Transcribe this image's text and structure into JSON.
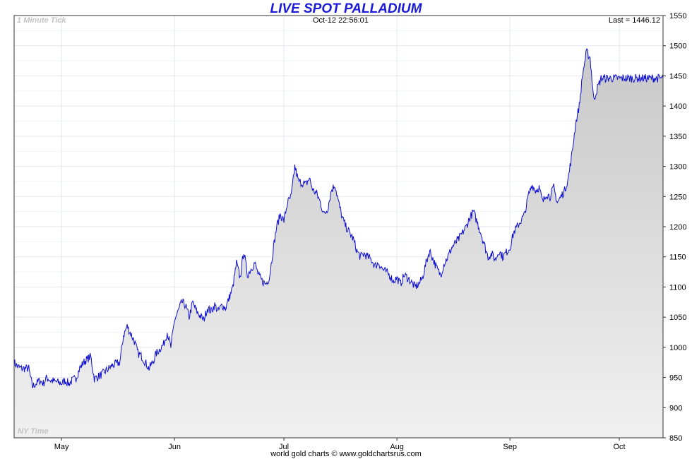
{
  "header": {
    "title": "LIVE SPOT PALLADIUM",
    "resolution_label": "1 Minute Tick",
    "timestamp": "Oct-12  22:56:01",
    "last_label": "Last = 1446.12",
    "timezone_label": "NY Time"
  },
  "footer": {
    "credit": "world gold charts © www.goldchartsrus.com"
  },
  "colors": {
    "line": "#1010d0",
    "area_top": "#c8c8c8",
    "area_bottom": "#efefef",
    "grid": "#e2e8ee",
    "title": "#1b1bd8"
  },
  "chart_data": {
    "type": "area",
    "title": "LIVE SPOT PALLADIUM",
    "xlabel": "",
    "ylabel": "",
    "ylim": [
      850,
      1550
    ],
    "y_ticks": [
      850,
      900,
      950,
      1000,
      1050,
      1100,
      1150,
      1200,
      1250,
      1300,
      1350,
      1400,
      1450,
      1500,
      1550
    ],
    "x_ticks": [
      {
        "label": "May",
        "day": 13
      },
      {
        "label": "Jun",
        "day": 44
      },
      {
        "label": "Jul",
        "day": 74
      },
      {
        "label": "Aug",
        "day": 105
      },
      {
        "label": "Sep",
        "day": 136
      },
      {
        "label": "Oct",
        "day": 166
      }
    ],
    "x_range_days": [
      0,
      178
    ],
    "grid": true,
    "legend": "none",
    "series": [
      {
        "name": "",
        "x_day": [
          0,
          1,
          2,
          4,
          5,
          6,
          7,
          8,
          9,
          10,
          12,
          13,
          14,
          15,
          17,
          18,
          19,
          20,
          21,
          22,
          24,
          25,
          26,
          27,
          29,
          30,
          31,
          33,
          34,
          35,
          36,
          37,
          38,
          39,
          41,
          42,
          43,
          44,
          46,
          47,
          48,
          49,
          50,
          52,
          53,
          54,
          55,
          56,
          57,
          58,
          60,
          61,
          62,
          63,
          64,
          66,
          67,
          68,
          69,
          70,
          71,
          72,
          73,
          74,
          75,
          76,
          77,
          78,
          80,
          81,
          82,
          83,
          84,
          85,
          86,
          87,
          88,
          89,
          90,
          91,
          92,
          93,
          94,
          95,
          96,
          97,
          98,
          99,
          100,
          101,
          102,
          103,
          104,
          105,
          106,
          107,
          108,
          110,
          111,
          112,
          113,
          114,
          116,
          117,
          118,
          119,
          120,
          122,
          123,
          124,
          125,
          126,
          128,
          129,
          130,
          131,
          132,
          133,
          134,
          136,
          137,
          138,
          139,
          140,
          141,
          142,
          143,
          144,
          145,
          146,
          147,
          148,
          149,
          150,
          151,
          152,
          153,
          154,
          155,
          156,
          157,
          158,
          159,
          160,
          161,
          162,
          163,
          164,
          165,
          166,
          167,
          168,
          169,
          170,
          171,
          172,
          173,
          174,
          175,
          176,
          177,
          178
        ],
        "values": [
          975,
          968,
          965,
          965,
          935,
          940,
          945,
          940,
          950,
          945,
          942,
          940,
          945,
          940,
          950,
          965,
          975,
          980,
          985,
          948,
          955,
          960,
          965,
          970,
          975,
          1020,
          1035,
          1010,
          990,
          985,
          975,
          965,
          975,
          990,
          1005,
          1025,
          1000,
          1045,
          1075,
          1070,
          1050,
          1075,
          1060,
          1045,
          1065,
          1060,
          1070,
          1060,
          1070,
          1065,
          1100,
          1140,
          1115,
          1160,
          1120,
          1140,
          1120,
          1110,
          1105,
          1115,
          1160,
          1200,
          1220,
          1210,
          1240,
          1250,
          1300,
          1275,
          1270,
          1280,
          1260,
          1255,
          1240,
          1220,
          1230,
          1260,
          1270,
          1240,
          1215,
          1200,
          1190,
          1180,
          1160,
          1150,
          1155,
          1150,
          1145,
          1135,
          1140,
          1130,
          1125,
          1120,
          1110,
          1115,
          1105,
          1120,
          1115,
          1100,
          1105,
          1115,
          1140,
          1160,
          1130,
          1120,
          1140,
          1150,
          1165,
          1180,
          1190,
          1200,
          1215,
          1225,
          1190,
          1170,
          1150,
          1155,
          1145,
          1160,
          1150,
          1165,
          1190,
          1200,
          1210,
          1220,
          1250,
          1270,
          1260,
          1265,
          1240,
          1255,
          1250,
          1265,
          1240,
          1250,
          1260,
          1280,
          1320,
          1370,
          1400,
          1455,
          1490,
          1480,
          1410,
          1430,
          1446,
          1446,
          1446,
          1446,
          1446,
          1446,
          1446,
          1446,
          1446,
          1446,
          1446,
          1446,
          1446,
          1446,
          1446,
          1446,
          1446,
          1446
        ]
      }
    ]
  }
}
